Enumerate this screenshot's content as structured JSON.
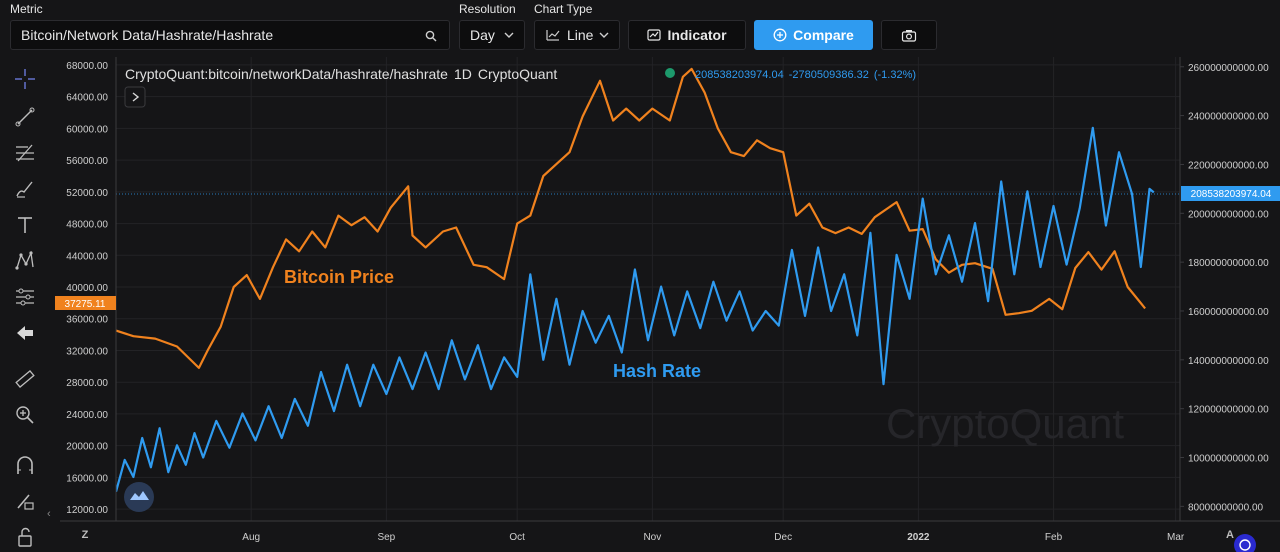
{
  "toolbar": {
    "metric_label": "Metric",
    "metric_value": "Bitcoin/Network Data/Hashrate/Hashrate",
    "resolution_label": "Resolution",
    "resolution_value": "Day",
    "chart_type_label": "Chart Type",
    "chart_type_value": "Line",
    "indicator_label": "Indicator",
    "compare_label": "Compare"
  },
  "sidebar_icons": [
    "crosshair-icon",
    "trend-line-icon",
    "fib-icon",
    "brush-icon",
    "text-icon",
    "pattern-icon",
    "forecast-icon",
    "back-arrow-icon",
    "ruler-icon",
    "zoom-in-icon",
    "magnet-icon",
    "lock-draw-icon",
    "unlock-icon"
  ],
  "header": {
    "symbol": "CryptoQuant:bitcoin/networkData/hashrate/hashrate",
    "interval": "1D",
    "source": "CryptoQuant",
    "last_value": "208538203974.04",
    "change": "-2780509386.32",
    "change_pct": "(-1.32%)"
  },
  "colors": {
    "price": "#f0821e",
    "hashrate": "#2f9bf0",
    "background": "#151517",
    "grid": "#232326"
  },
  "chart_data": {
    "type": "line",
    "left_axis": {
      "ticks": [
        "68000.00",
        "64000.00",
        "60000.00",
        "56000.00",
        "52000.00",
        "48000.00",
        "44000.00",
        "40000.00",
        "36000.00",
        "32000.00",
        "28000.00",
        "24000.00",
        "20000.00",
        "16000.00",
        "12000.00"
      ],
      "range": [
        10500,
        69000
      ],
      "price_badge": "37275.11"
    },
    "right_axis": {
      "ticks": [
        "260000000000.00",
        "240000000000.00",
        "220000000000.00",
        "200000000000.00",
        "180000000000.00",
        "160000000000.00",
        "140000000000.00",
        "120000000000.00",
        "100000000000.00",
        "80000000000.00"
      ],
      "range": [
        74000000000,
        264000000000
      ],
      "value_badge": "208538203974.04"
    },
    "x_axis": {
      "ticks": [
        "Aug",
        "Sep",
        "Oct",
        "Nov",
        "Dec",
        "2022",
        "Feb",
        "Mar"
      ],
      "range": [
        "2021-07-01",
        "2022-03-02"
      ]
    },
    "annotations": [
      "Bitcoin Price",
      "Hash Rate"
    ],
    "watermark": "CryptoQuant",
    "series": [
      {
        "name": "Bitcoin Price",
        "axis": "left",
        "points": [
          [
            "2021-07-01",
            34500
          ],
          [
            "2021-07-05",
            33800
          ],
          [
            "2021-07-10",
            33500
          ],
          [
            "2021-07-15",
            32500
          ],
          [
            "2021-07-20",
            29800
          ],
          [
            "2021-07-22",
            32000
          ],
          [
            "2021-07-25",
            35000
          ],
          [
            "2021-07-28",
            40000
          ],
          [
            "2021-07-31",
            41500
          ],
          [
            "2021-08-03",
            38500
          ],
          [
            "2021-08-06",
            42500
          ],
          [
            "2021-08-09",
            46000
          ],
          [
            "2021-08-12",
            44500
          ],
          [
            "2021-08-15",
            47000
          ],
          [
            "2021-08-18",
            45000
          ],
          [
            "2021-08-21",
            49000
          ],
          [
            "2021-08-24",
            47800
          ],
          [
            "2021-08-27",
            48800
          ],
          [
            "2021-08-30",
            47000
          ],
          [
            "2021-09-02",
            50000
          ],
          [
            "2021-09-06",
            52700
          ],
          [
            "2021-09-07",
            46500
          ],
          [
            "2021-09-10",
            45000
          ],
          [
            "2021-09-14",
            47000
          ],
          [
            "2021-09-17",
            47500
          ],
          [
            "2021-09-21",
            42800
          ],
          [
            "2021-09-24",
            42500
          ],
          [
            "2021-09-28",
            41000
          ],
          [
            "2021-10-01",
            48000
          ],
          [
            "2021-10-04",
            49000
          ],
          [
            "2021-10-07",
            54000
          ],
          [
            "2021-10-10",
            55500
          ],
          [
            "2021-10-13",
            57000
          ],
          [
            "2021-10-16",
            61500
          ],
          [
            "2021-10-20",
            66000
          ],
          [
            "2021-10-23",
            61000
          ],
          [
            "2021-10-26",
            62500
          ],
          [
            "2021-10-29",
            61000
          ],
          [
            "2021-11-01",
            62500
          ],
          [
            "2021-11-05",
            61000
          ],
          [
            "2021-11-08",
            66500
          ],
          [
            "2021-11-10",
            67500
          ],
          [
            "2021-11-13",
            64500
          ],
          [
            "2021-11-16",
            60000
          ],
          [
            "2021-11-19",
            57000
          ],
          [
            "2021-11-22",
            56500
          ],
          [
            "2021-11-25",
            58500
          ],
          [
            "2021-11-28",
            57500
          ],
          [
            "2021-12-01",
            57000
          ],
          [
            "2021-12-04",
            49000
          ],
          [
            "2021-12-07",
            50500
          ],
          [
            "2021-12-10",
            47500
          ],
          [
            "2021-12-13",
            46800
          ],
          [
            "2021-12-16",
            47500
          ],
          [
            "2021-12-19",
            46700
          ],
          [
            "2021-12-22",
            48800
          ],
          [
            "2021-12-27",
            50700
          ],
          [
            "2021-12-30",
            47100
          ],
          [
            "2022-01-02",
            47300
          ],
          [
            "2022-01-05",
            43500
          ],
          [
            "2022-01-08",
            41800
          ],
          [
            "2022-01-11",
            42800
          ],
          [
            "2022-01-14",
            43000
          ],
          [
            "2022-01-18",
            42300
          ],
          [
            "2022-01-21",
            36500
          ],
          [
            "2022-01-24",
            36700
          ],
          [
            "2022-01-27",
            37000
          ],
          [
            "2022-01-31",
            38500
          ],
          [
            "2022-02-03",
            37200
          ],
          [
            "2022-02-06",
            42400
          ],
          [
            "2022-02-09",
            44400
          ],
          [
            "2022-02-12",
            42200
          ],
          [
            "2022-02-15",
            44500
          ],
          [
            "2022-02-18",
            40000
          ],
          [
            "2022-02-22",
            37300
          ]
        ]
      },
      {
        "name": "Hash Rate",
        "axis": "right",
        "points": [
          [
            "2021-07-01",
            86000000000
          ],
          [
            "2021-07-03",
            99000000000
          ],
          [
            "2021-07-05",
            92000000000
          ],
          [
            "2021-07-07",
            108000000000
          ],
          [
            "2021-07-09",
            96000000000
          ],
          [
            "2021-07-11",
            112000000000
          ],
          [
            "2021-07-13",
            94000000000
          ],
          [
            "2021-07-15",
            105000000000
          ],
          [
            "2021-07-17",
            97000000000
          ],
          [
            "2021-07-19",
            110000000000
          ],
          [
            "2021-07-21",
            100000000000
          ],
          [
            "2021-07-24",
            115000000000
          ],
          [
            "2021-07-27",
            104000000000
          ],
          [
            "2021-07-30",
            118000000000
          ],
          [
            "2021-08-02",
            107000000000
          ],
          [
            "2021-08-05",
            121000000000
          ],
          [
            "2021-08-08",
            108000000000
          ],
          [
            "2021-08-11",
            124000000000
          ],
          [
            "2021-08-14",
            113000000000
          ],
          [
            "2021-08-17",
            135000000000
          ],
          [
            "2021-08-20",
            119000000000
          ],
          [
            "2021-08-23",
            138000000000
          ],
          [
            "2021-08-26",
            121000000000
          ],
          [
            "2021-08-29",
            138000000000
          ],
          [
            "2021-09-01",
            126000000000
          ],
          [
            "2021-09-04",
            141000000000
          ],
          [
            "2021-09-07",
            128000000000
          ],
          [
            "2021-09-10",
            143000000000
          ],
          [
            "2021-09-13",
            128000000000
          ],
          [
            "2021-09-16",
            148000000000
          ],
          [
            "2021-09-19",
            132000000000
          ],
          [
            "2021-09-22",
            146000000000
          ],
          [
            "2021-09-25",
            128000000000
          ],
          [
            "2021-09-28",
            141000000000
          ],
          [
            "2021-10-01",
            133000000000
          ],
          [
            "2021-10-04",
            175000000000
          ],
          [
            "2021-10-07",
            140000000000
          ],
          [
            "2021-10-10",
            165000000000
          ],
          [
            "2021-10-13",
            138000000000
          ],
          [
            "2021-10-16",
            160000000000
          ],
          [
            "2021-10-19",
            147000000000
          ],
          [
            "2021-10-22",
            158000000000
          ],
          [
            "2021-10-25",
            143000000000
          ],
          [
            "2021-10-28",
            177000000000
          ],
          [
            "2021-10-31",
            148000000000
          ],
          [
            "2021-11-03",
            170000000000
          ],
          [
            "2021-11-06",
            150000000000
          ],
          [
            "2021-11-09",
            168000000000
          ],
          [
            "2021-11-12",
            153000000000
          ],
          [
            "2021-11-15",
            172000000000
          ],
          [
            "2021-11-18",
            156000000000
          ],
          [
            "2021-11-21",
            168000000000
          ],
          [
            "2021-11-24",
            152000000000
          ],
          [
            "2021-11-27",
            160000000000
          ],
          [
            "2021-11-30",
            154000000000
          ],
          [
            "2021-12-03",
            185000000000
          ],
          [
            "2021-12-06",
            158000000000
          ],
          [
            "2021-12-09",
            186000000000
          ],
          [
            "2021-12-12",
            160000000000
          ],
          [
            "2021-12-15",
            175000000000
          ],
          [
            "2021-12-18",
            150000000000
          ],
          [
            "2021-12-21",
            192000000000
          ],
          [
            "2021-12-24",
            130000000000
          ],
          [
            "2021-12-27",
            183000000000
          ],
          [
            "2021-12-30",
            165000000000
          ],
          [
            "2022-01-02",
            206000000000
          ],
          [
            "2022-01-05",
            175000000000
          ],
          [
            "2022-01-08",
            191000000000
          ],
          [
            "2022-01-11",
            172000000000
          ],
          [
            "2022-01-14",
            196000000000
          ],
          [
            "2022-01-17",
            164000000000
          ],
          [
            "2022-01-20",
            213000000000
          ],
          [
            "2022-01-23",
            175000000000
          ],
          [
            "2022-01-26",
            209000000000
          ],
          [
            "2022-01-29",
            178000000000
          ],
          [
            "2022-02-01",
            203000000000
          ],
          [
            "2022-02-04",
            179000000000
          ],
          [
            "2022-02-07",
            202000000000
          ],
          [
            "2022-02-10",
            235000000000
          ],
          [
            "2022-02-13",
            195000000000
          ],
          [
            "2022-02-16",
            225000000000
          ],
          [
            "2022-02-19",
            208000000000
          ],
          [
            "2022-02-21",
            178000000000
          ],
          [
            "2022-02-23",
            210000000000
          ],
          [
            "2022-02-24",
            208538203974
          ]
        ]
      }
    ]
  }
}
